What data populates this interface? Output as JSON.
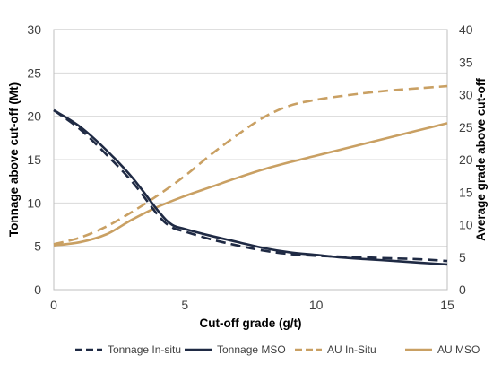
{
  "chart_data": {
    "type": "line",
    "xlabel": "Cut-off grade (g/t)",
    "ylabel_left": "Tonnage above cut-off (Mt)",
    "ylabel_right": "Average grade above cut-off",
    "xlim": [
      0,
      15
    ],
    "ylim_left": [
      0,
      30
    ],
    "ylim_right": [
      0,
      40
    ],
    "x_ticks": [
      "0",
      "5",
      "10",
      "15"
    ],
    "y_left_ticks": [
      "0",
      "5",
      "10",
      "15",
      "20",
      "25",
      "30"
    ],
    "y_right_ticks": [
      "0",
      "5",
      "10",
      "15",
      "20",
      "25",
      "30",
      "35",
      "40"
    ],
    "grid": "horizontal",
    "legend_position": "bottom",
    "series": [
      {
        "name": "Tonnage In-situ",
        "axis": "left",
        "color": "#1f2a44",
        "dash": "dashed",
        "x": [
          0,
          1,
          2,
          3,
          4,
          4.5,
          5,
          6,
          7,
          8,
          9,
          10,
          11,
          12,
          13,
          14,
          15
        ],
        "y": [
          20.7,
          18.5,
          15.6,
          12.4,
          8.5,
          7.2,
          6.7,
          5.8,
          5.1,
          4.5,
          4.1,
          3.9,
          3.8,
          3.7,
          3.6,
          3.5,
          3.3
        ]
      },
      {
        "name": "Tonnage MSO",
        "axis": "left",
        "color": "#1f2a44",
        "dash": "solid",
        "x": [
          0,
          1,
          2,
          3,
          4,
          4.5,
          5,
          6,
          7,
          8,
          9,
          10,
          11,
          12,
          13,
          14,
          15
        ],
        "y": [
          20.7,
          18.8,
          16.1,
          12.9,
          9.0,
          7.5,
          7.0,
          6.2,
          5.5,
          4.8,
          4.3,
          4.0,
          3.7,
          3.5,
          3.3,
          3.1,
          2.9
        ]
      },
      {
        "name": "AU In-Situ",
        "axis": "right",
        "color": "#c9a063",
        "dash": "dashed",
        "x": [
          0,
          1,
          2,
          3,
          4,
          5,
          6,
          7,
          8,
          9,
          10,
          11,
          12,
          13,
          14,
          15
        ],
        "y": [
          7.0,
          8.0,
          9.7,
          12.0,
          14.6,
          17.5,
          20.8,
          23.8,
          26.5,
          28.3,
          29.2,
          29.8,
          30.3,
          30.7,
          31.0,
          31.3
        ]
      },
      {
        "name": "AU MSO",
        "axis": "right",
        "color": "#c9a063",
        "dash": "solid",
        "x": [
          0,
          1,
          2,
          3,
          4,
          5,
          6,
          7,
          8,
          9,
          10,
          11,
          12,
          13,
          14,
          15
        ],
        "y": [
          6.8,
          7.3,
          8.5,
          10.8,
          12.8,
          14.4,
          15.8,
          17.2,
          18.5,
          19.6,
          20.6,
          21.6,
          22.6,
          23.6,
          24.6,
          25.6
        ]
      }
    ]
  }
}
